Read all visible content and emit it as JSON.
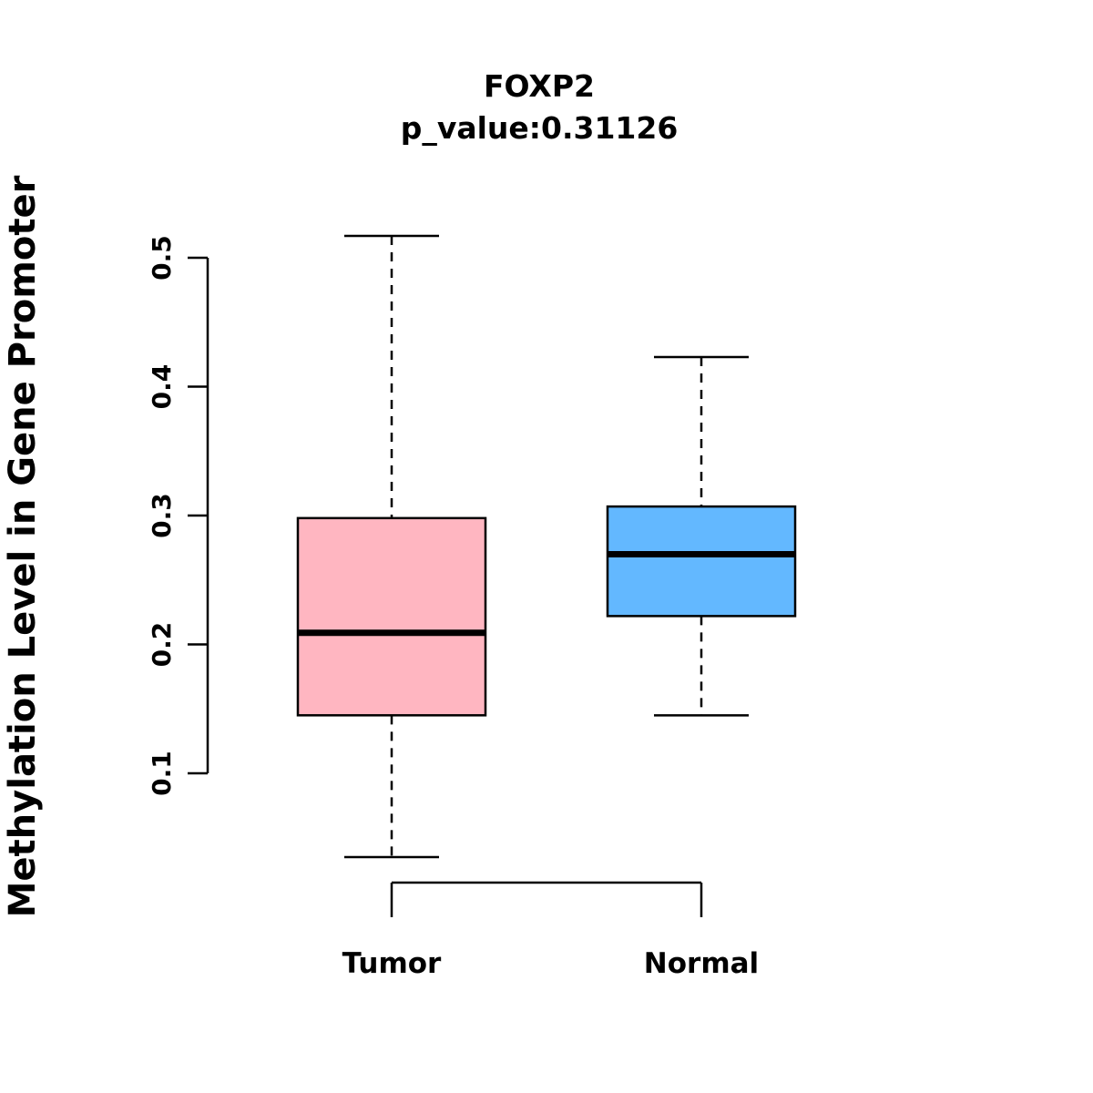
{
  "title": "FOXP2",
  "subtitle": "p_value:0.31126",
  "ylabel": "Methylation Level in Gene Promoter",
  "p_value": 0.31126,
  "colors": {
    "tumor_box": "#FFB6C1",
    "normal_box": "#63B8FF",
    "axis": "#000000",
    "background": "#FFFFFF"
  },
  "chart_data": {
    "type": "boxplot",
    "title": "FOXP2",
    "subtitle": "p_value:0.31126",
    "xlabel": "",
    "ylabel": "Methylation Level in Gene Promoter",
    "y_ticks": [
      0.1,
      0.2,
      0.3,
      0.4,
      0.5
    ],
    "ylim": [
      0.03,
      0.52
    ],
    "grid": false,
    "legend": false,
    "categories": [
      "Tumor",
      "Normal"
    ],
    "groups": [
      {
        "name": "Tumor",
        "color": "#FFB6C1",
        "whisker_low": 0.035,
        "q1": 0.145,
        "median": 0.209,
        "q3": 0.298,
        "whisker_high": 0.517
      },
      {
        "name": "Normal",
        "color": "#63B8FF",
        "whisker_low": 0.145,
        "q1": 0.222,
        "median": 0.27,
        "q3": 0.307,
        "whisker_high": 0.423
      }
    ]
  }
}
